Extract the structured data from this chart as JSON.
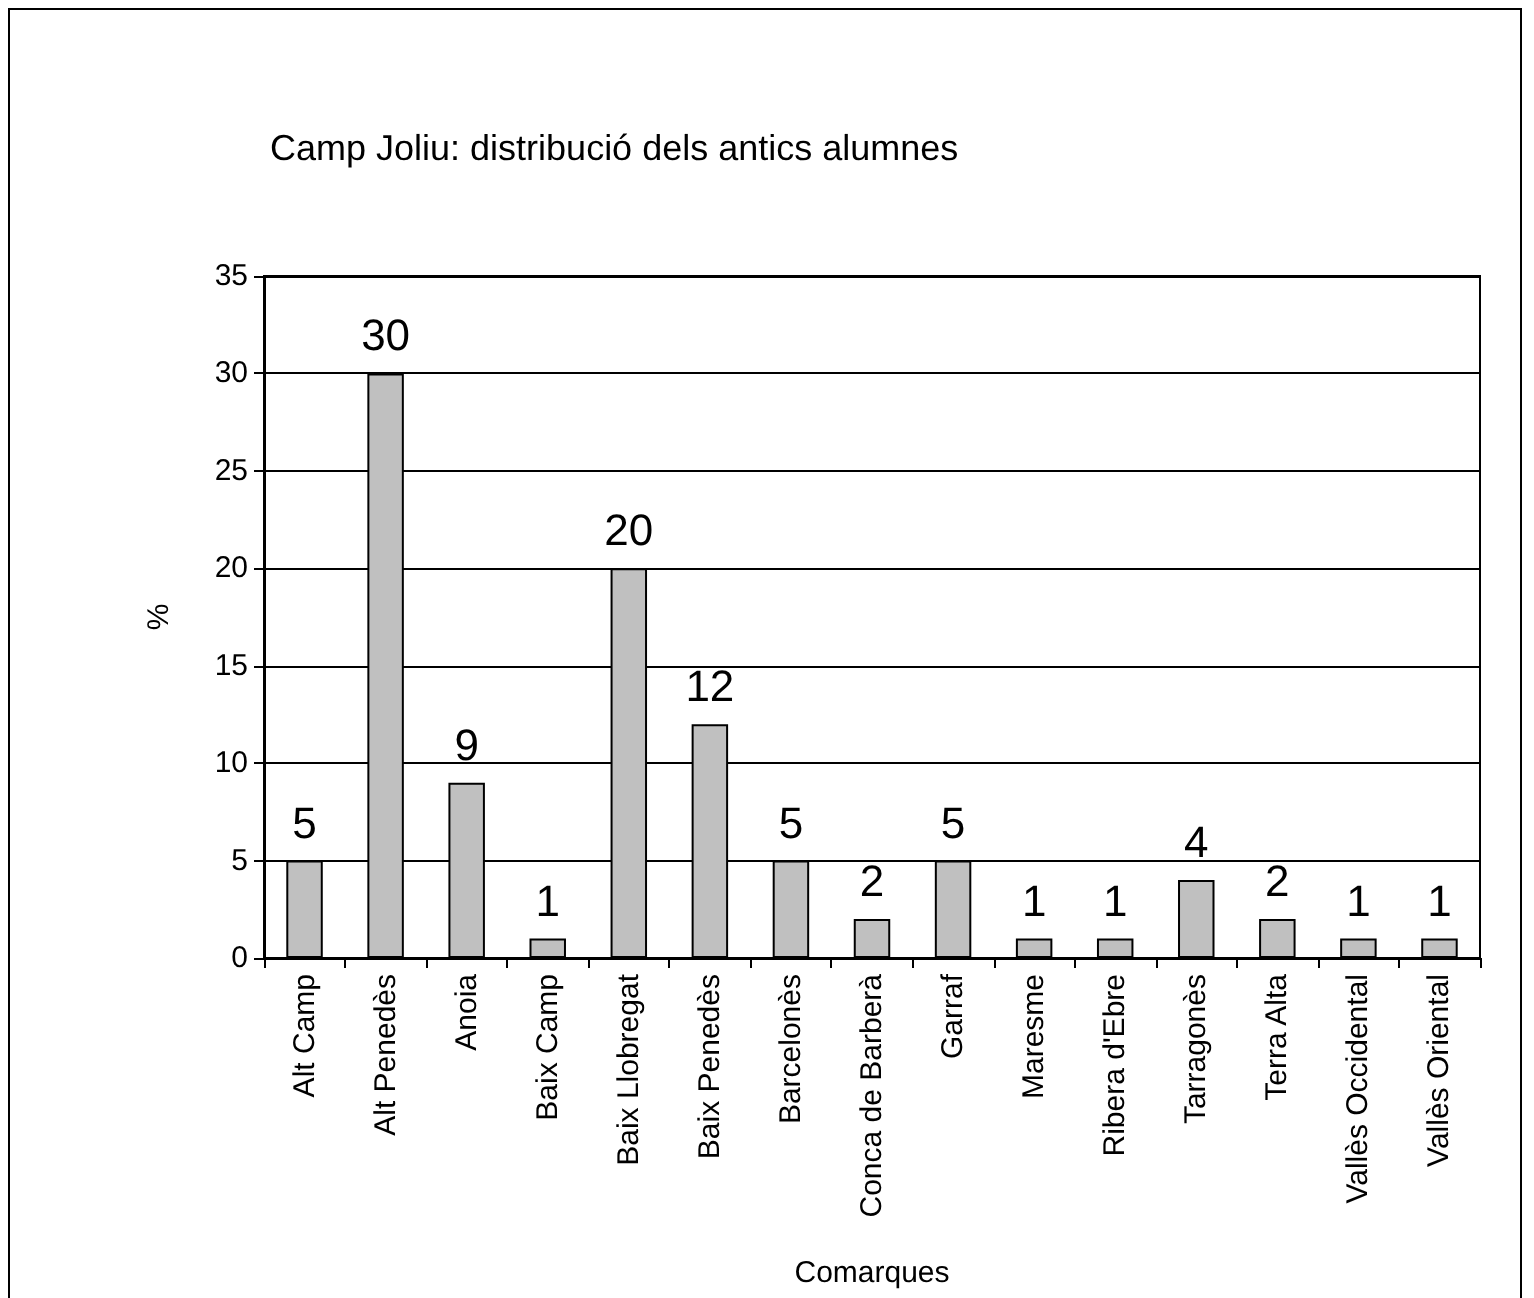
{
  "chart_data": {
    "type": "bar",
    "title": "Camp Joliu: distribució dels antics alumnes",
    "xlabel": "Comarques",
    "ylabel": "%",
    "categories": [
      "Alt Camp",
      "Alt Penedès",
      "Anoia",
      "Baix Camp",
      "Baix Llobregat",
      "Baix Penedès",
      "Barcelonès",
      "Conca de Barberà",
      "Garraf",
      "Maresme",
      "Ribera d'Ebre",
      "Tarragonès",
      "Terra Alta",
      "Vallès Occidental",
      "Vallès Oriental"
    ],
    "values": [
      5,
      30,
      9,
      1,
      20,
      12,
      5,
      2,
      5,
      1,
      1,
      4,
      2,
      1,
      1
    ],
    "color": "#c0c0c0",
    "ylim": [
      0,
      35
    ],
    "yticks": [
      0,
      5,
      10,
      15,
      20,
      25,
      30,
      35
    ],
    "grid": "y",
    "data_labels": true
  }
}
